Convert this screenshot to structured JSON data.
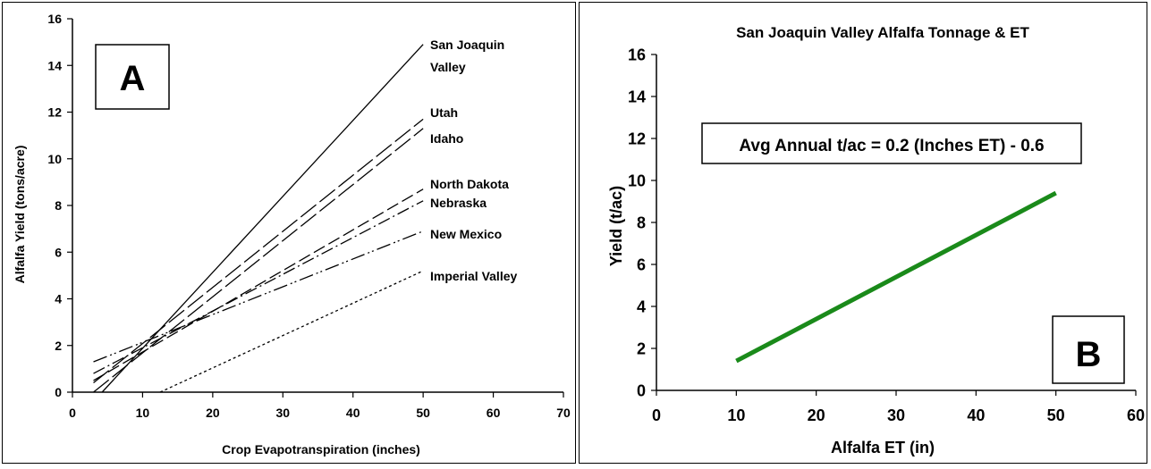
{
  "chart_data": [
    {
      "panel_label": "A",
      "type": "line",
      "title": "",
      "xlabel": "Crop Evapotranspiration (inches)",
      "ylabel": "Alfalfa Yield (tons/acre)",
      "xlim": [
        0,
        70
      ],
      "ylim": [
        0,
        16
      ],
      "xticks": [
        "0",
        "10",
        "20",
        "30",
        "40",
        "50",
        "60",
        "70"
      ],
      "yticks": [
        "0",
        "2",
        "4",
        "6",
        "8",
        "10",
        "12",
        "14",
        "16"
      ],
      "grid": false,
      "series": [
        {
          "name": "San Joaquin Valley",
          "style": "solid",
          "x": [
            3,
            50
          ],
          "y": [
            -0.4,
            14.9
          ]
        },
        {
          "name": "Utah",
          "style": "longdash",
          "x": [
            3,
            50
          ],
          "y": [
            0.4,
            11.7
          ]
        },
        {
          "name": "Idaho",
          "style": "longdash",
          "x": [
            3,
            50
          ],
          "y": [
            0.0,
            11.3
          ]
        },
        {
          "name": "North Dakota",
          "style": "dash",
          "x": [
            3,
            50
          ],
          "y": [
            0.5,
            8.7
          ]
        },
        {
          "name": "Nebraska",
          "style": "dashdot",
          "x": [
            3,
            50
          ],
          "y": [
            0.8,
            8.2
          ]
        },
        {
          "name": "New Mexico",
          "style": "dashdotdot",
          "x": [
            3,
            50
          ],
          "y": [
            1.3,
            6.9
          ]
        },
        {
          "name": "Imperial Valley",
          "style": "dotted",
          "x": [
            12.5,
            50
          ],
          "y": [
            0.0,
            5.2
          ]
        }
      ],
      "series_labels": [
        "San Joaquin",
        "Valley",
        "Utah",
        "Idaho",
        "North Dakota",
        "Nebraska",
        "New Mexico",
        "Imperial Valley"
      ]
    },
    {
      "panel_label": "B",
      "type": "line",
      "title": "San Joaquin Valley Alfalfa Tonnage & ET",
      "xlabel": "Alfalfa ET (in)",
      "ylabel": "Yield (t/ac)",
      "xlim": [
        0,
        60
      ],
      "ylim": [
        0,
        16
      ],
      "xticks": [
        "0",
        "10",
        "20",
        "30",
        "40",
        "50",
        "60"
      ],
      "yticks": [
        "0",
        "2",
        "4",
        "6",
        "8",
        "10",
        "12",
        "14",
        "16"
      ],
      "grid": false,
      "annotation": "Avg Annual t/ac = 0.2 (Inches ET) - 0.6",
      "line_color": "#1a8a1a",
      "series": [
        {
          "x": [
            10,
            50
          ],
          "y": [
            1.4,
            9.4
          ]
        }
      ]
    }
  ]
}
